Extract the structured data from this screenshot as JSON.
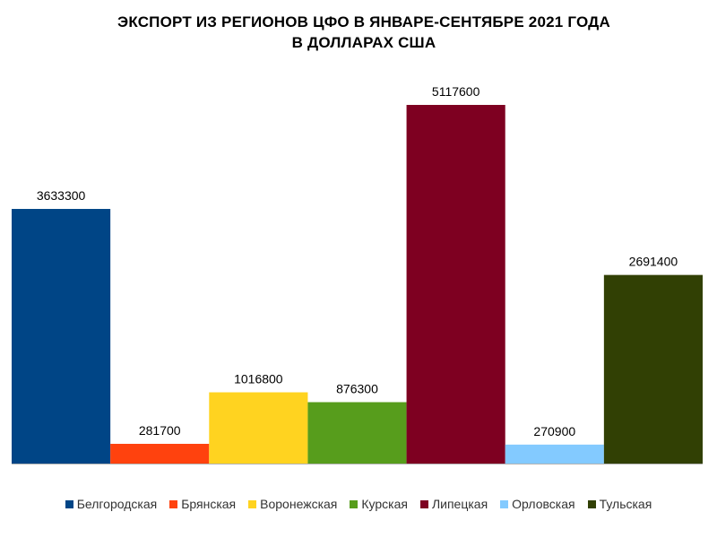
{
  "chart_data": {
    "type": "bar",
    "title": "ЭКСПОРТ ИЗ РЕГИОНОВ ЦФО В ЯНВАРЕ-СЕНТЯБРЕ 2021 ГОДА",
    "subtitle": "В ДОЛЛАРАХ США",
    "categories": [
      "Белгородская",
      "Брянская",
      "Воронежская",
      "Курская",
      "Липецкая",
      "Орловская",
      "Тульская"
    ],
    "values": [
      3633300,
      281700,
      1016800,
      876300,
      5117600,
      270900,
      2691400
    ],
    "colors": [
      "#004586",
      "#ff420e",
      "#ffd320",
      "#579d1c",
      "#7e0021",
      "#83caff",
      "#314004"
    ],
    "ylim": [
      0,
      5117600
    ],
    "grid": false,
    "legend_position": "bottom"
  }
}
